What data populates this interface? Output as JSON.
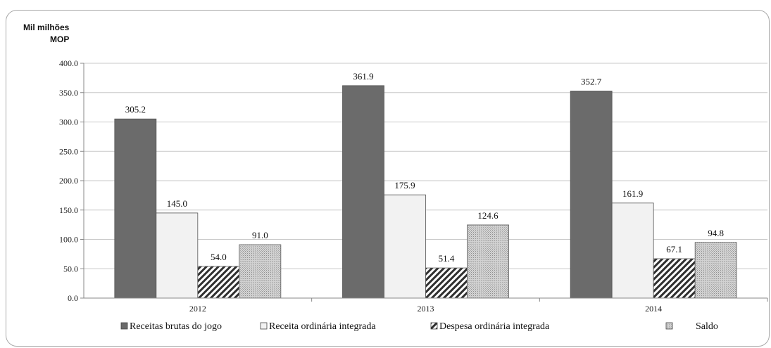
{
  "chart_data": {
    "type": "bar",
    "ylabel_lines": [
      "Mil milhões",
      "MOP"
    ],
    "categories": [
      "2012",
      "2013",
      "2014"
    ],
    "ylim": [
      0,
      400
    ],
    "yticks": [
      "0.0",
      "50.0",
      "100.0",
      "150.0",
      "200.0",
      "250.0",
      "300.0",
      "350.0",
      "400.0"
    ],
    "grid": true,
    "legend_position": "bottom",
    "series": [
      {
        "name": "Receitas brutas do jogo",
        "values": [
          305.2,
          361.9,
          352.7
        ],
        "labels": [
          "305.2",
          "361.9",
          "352.7"
        ],
        "color": "#6b6b6b",
        "pattern": "solid"
      },
      {
        "name": "Receita ordinária integrada",
        "values": [
          145.0,
          175.9,
          161.9
        ],
        "labels": [
          "145.0",
          "175.9",
          "161.9"
        ],
        "color": "#f2f2f2",
        "pattern": "solid"
      },
      {
        "name": "Despesa ordinária integrada",
        "values": [
          54.0,
          51.4,
          67.1
        ],
        "labels": [
          "54.0",
          "51.4",
          "67.1"
        ],
        "color": "#333333",
        "pattern": "diagonal-hatch"
      },
      {
        "name": "Saldo",
        "values": [
          91.0,
          124.6,
          94.8
        ],
        "labels": [
          "91.0",
          "124.6",
          "94.8"
        ],
        "color": "#bcbcbc",
        "pattern": "dots"
      }
    ]
  }
}
